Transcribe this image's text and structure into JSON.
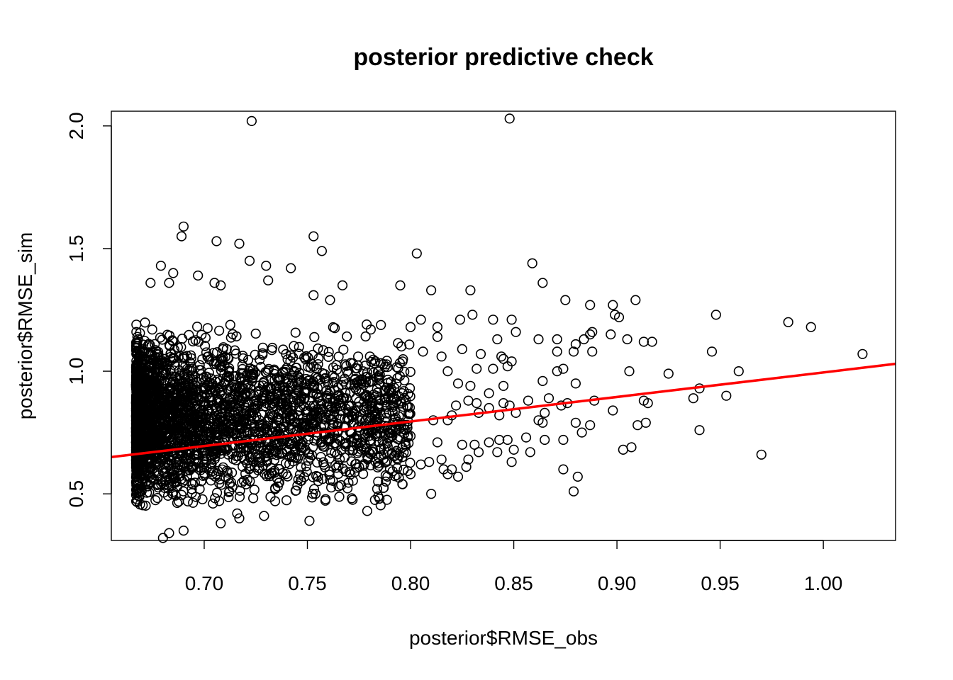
{
  "chart_data": {
    "type": "scatter",
    "title": "posterior predictive check",
    "xlabel": "posterior$RMSE_obs",
    "ylabel": "posterior$RMSE_sim",
    "xlim": [
      0.655,
      1.035
    ],
    "ylim": [
      0.31,
      2.06
    ],
    "x_ticks": [
      0.7,
      0.75,
      0.8,
      0.85,
      0.9,
      0.95,
      1.0
    ],
    "x_tick_labels": [
      "0.70",
      "0.75",
      "0.80",
      "0.85",
      "0.90",
      "0.95",
      "1.00"
    ],
    "y_ticks": [
      0.5,
      1.0,
      1.5,
      2.0
    ],
    "y_tick_labels": [
      "0.5",
      "1.0",
      "1.5",
      "2.0"
    ],
    "grid": false,
    "legend": "none",
    "point_color": "#000000",
    "line_color": "#ff0000",
    "regression_line": {
      "intercept": -0.005,
      "slope": 1.0,
      "x_start": 0.655,
      "x_end": 1.035
    },
    "dense_cloud": {
      "x_min": 0.667,
      "x_max": 0.8,
      "y_center": 0.8,
      "y_min": 0.45,
      "y_max": 1.2,
      "n_points": 3000
    },
    "points": [
      [
        0.723,
        2.02
      ],
      [
        0.848,
        2.03
      ],
      [
        0.69,
        1.59
      ],
      [
        0.689,
        1.55
      ],
      [
        0.706,
        1.53
      ],
      [
        0.753,
        1.55
      ],
      [
        0.717,
        1.52
      ],
      [
        0.757,
        1.49
      ],
      [
        0.803,
        1.48
      ],
      [
        0.859,
        1.44
      ],
      [
        0.722,
        1.45
      ],
      [
        0.742,
        1.42
      ],
      [
        0.73,
        1.43
      ],
      [
        0.679,
        1.43
      ],
      [
        0.685,
        1.4
      ],
      [
        0.697,
        1.39
      ],
      [
        0.731,
        1.37
      ],
      [
        0.864,
        1.36
      ],
      [
        0.705,
        1.36
      ],
      [
        0.708,
        1.35
      ],
      [
        0.767,
        1.35
      ],
      [
        0.795,
        1.35
      ],
      [
        0.81,
        1.33
      ],
      [
        0.829,
        1.33
      ],
      [
        0.674,
        1.36
      ],
      [
        0.683,
        1.36
      ],
      [
        0.875,
        1.29
      ],
      [
        0.898,
        1.27
      ],
      [
        0.909,
        1.29
      ],
      [
        0.887,
        1.27
      ],
      [
        0.753,
        1.31
      ],
      [
        0.761,
        1.29
      ],
      [
        0.899,
        1.23
      ],
      [
        0.901,
        1.22
      ],
      [
        0.948,
        1.23
      ],
      [
        0.983,
        1.2
      ],
      [
        0.994,
        1.18
      ],
      [
        0.849,
        1.21
      ],
      [
        0.83,
        1.23
      ],
      [
        0.84,
        1.21
      ],
      [
        0.824,
        1.21
      ],
      [
        0.805,
        1.21
      ],
      [
        0.813,
        1.18
      ],
      [
        0.897,
        1.15
      ],
      [
        0.888,
        1.16
      ],
      [
        0.887,
        1.15
      ],
      [
        0.862,
        1.13
      ],
      [
        0.871,
        1.13
      ],
      [
        0.851,
        1.16
      ],
      [
        0.842,
        1.13
      ],
      [
        0.813,
        1.14
      ],
      [
        0.8,
        1.18
      ],
      [
        0.905,
        1.13
      ],
      [
        0.913,
        1.12
      ],
      [
        0.917,
        1.12
      ],
      [
        0.884,
        1.13
      ],
      [
        0.88,
        1.11
      ],
      [
        0.888,
        1.08
      ],
      [
        0.879,
        1.08
      ],
      [
        0.871,
        1.08
      ],
      [
        0.946,
        1.08
      ],
      [
        1.019,
        1.07
      ],
      [
        0.844,
        1.06
      ],
      [
        0.849,
        1.04
      ],
      [
        0.845,
        1.05
      ],
      [
        0.834,
        1.07
      ],
      [
        0.825,
        1.09
      ],
      [
        0.815,
        1.06
      ],
      [
        0.806,
        1.08
      ],
      [
        0.818,
        1.0
      ],
      [
        0.832,
        1.01
      ],
      [
        0.84,
        1.01
      ],
      [
        0.847,
        1.02
      ],
      [
        0.871,
        1.0
      ],
      [
        0.874,
        1.01
      ],
      [
        0.906,
        1.0
      ],
      [
        0.925,
        0.99
      ],
      [
        0.959,
        1.0
      ],
      [
        0.864,
        0.96
      ],
      [
        0.88,
        0.95
      ],
      [
        0.845,
        0.94
      ],
      [
        0.829,
        0.94
      ],
      [
        0.838,
        0.91
      ],
      [
        0.823,
        0.95
      ],
      [
        0.94,
        0.93
      ],
      [
        0.937,
        0.89
      ],
      [
        0.953,
        0.9
      ],
      [
        0.913,
        0.88
      ],
      [
        0.915,
        0.87
      ],
      [
        0.889,
        0.88
      ],
      [
        0.873,
        0.86
      ],
      [
        0.876,
        0.87
      ],
      [
        0.867,
        0.89
      ],
      [
        0.857,
        0.88
      ],
      [
        0.848,
        0.86
      ],
      [
        0.845,
        0.87
      ],
      [
        0.838,
        0.85
      ],
      [
        0.832,
        0.87
      ],
      [
        0.828,
        0.88
      ],
      [
        0.822,
        0.86
      ],
      [
        0.865,
        0.83
      ],
      [
        0.851,
        0.83
      ],
      [
        0.843,
        0.82
      ],
      [
        0.833,
        0.83
      ],
      [
        0.82,
        0.82
      ],
      [
        0.818,
        0.8
      ],
      [
        0.811,
        0.8
      ],
      [
        0.862,
        0.8
      ],
      [
        0.864,
        0.79
      ],
      [
        0.88,
        0.79
      ],
      [
        0.887,
        0.78
      ],
      [
        0.91,
        0.78
      ],
      [
        0.914,
        0.79
      ],
      [
        0.94,
        0.76
      ],
      [
        0.883,
        0.75
      ],
      [
        0.898,
        0.84
      ],
      [
        0.856,
        0.73
      ],
      [
        0.865,
        0.72
      ],
      [
        0.874,
        0.72
      ],
      [
        0.843,
        0.72
      ],
      [
        0.847,
        0.72
      ],
      [
        0.838,
        0.71
      ],
      [
        0.831,
        0.7
      ],
      [
        0.825,
        0.7
      ],
      [
        0.813,
        0.71
      ],
      [
        0.903,
        0.68
      ],
      [
        0.907,
        0.69
      ],
      [
        0.97,
        0.66
      ],
      [
        0.858,
        0.67
      ],
      [
        0.85,
        0.68
      ],
      [
        0.842,
        0.67
      ],
      [
        0.833,
        0.67
      ],
      [
        0.828,
        0.64
      ],
      [
        0.815,
        0.64
      ],
      [
        0.809,
        0.63
      ],
      [
        0.849,
        0.63
      ],
      [
        0.82,
        0.6
      ],
      [
        0.827,
        0.61
      ],
      [
        0.816,
        0.6
      ],
      [
        0.874,
        0.6
      ],
      [
        0.881,
        0.57
      ],
      [
        0.823,
        0.57
      ],
      [
        0.818,
        0.58
      ],
      [
        0.879,
        0.51
      ],
      [
        0.81,
        0.5
      ],
      [
        0.779,
        0.43
      ],
      [
        0.751,
        0.39
      ],
      [
        0.68,
        0.32
      ],
      [
        0.683,
        0.34
      ],
      [
        0.708,
        0.38
      ],
      [
        0.69,
        0.35
      ],
      [
        0.729,
        0.41
      ],
      [
        0.716,
        0.42
      ],
      [
        0.717,
        0.4
      ],
      [
        0.788,
        0.55
      ],
      [
        0.796,
        0.54
      ],
      [
        0.79,
        0.6
      ],
      [
        0.8,
        0.58
      ],
      [
        0.805,
        0.62
      ],
      [
        0.796,
        0.65
      ],
      [
        0.787,
        0.7
      ]
    ]
  }
}
